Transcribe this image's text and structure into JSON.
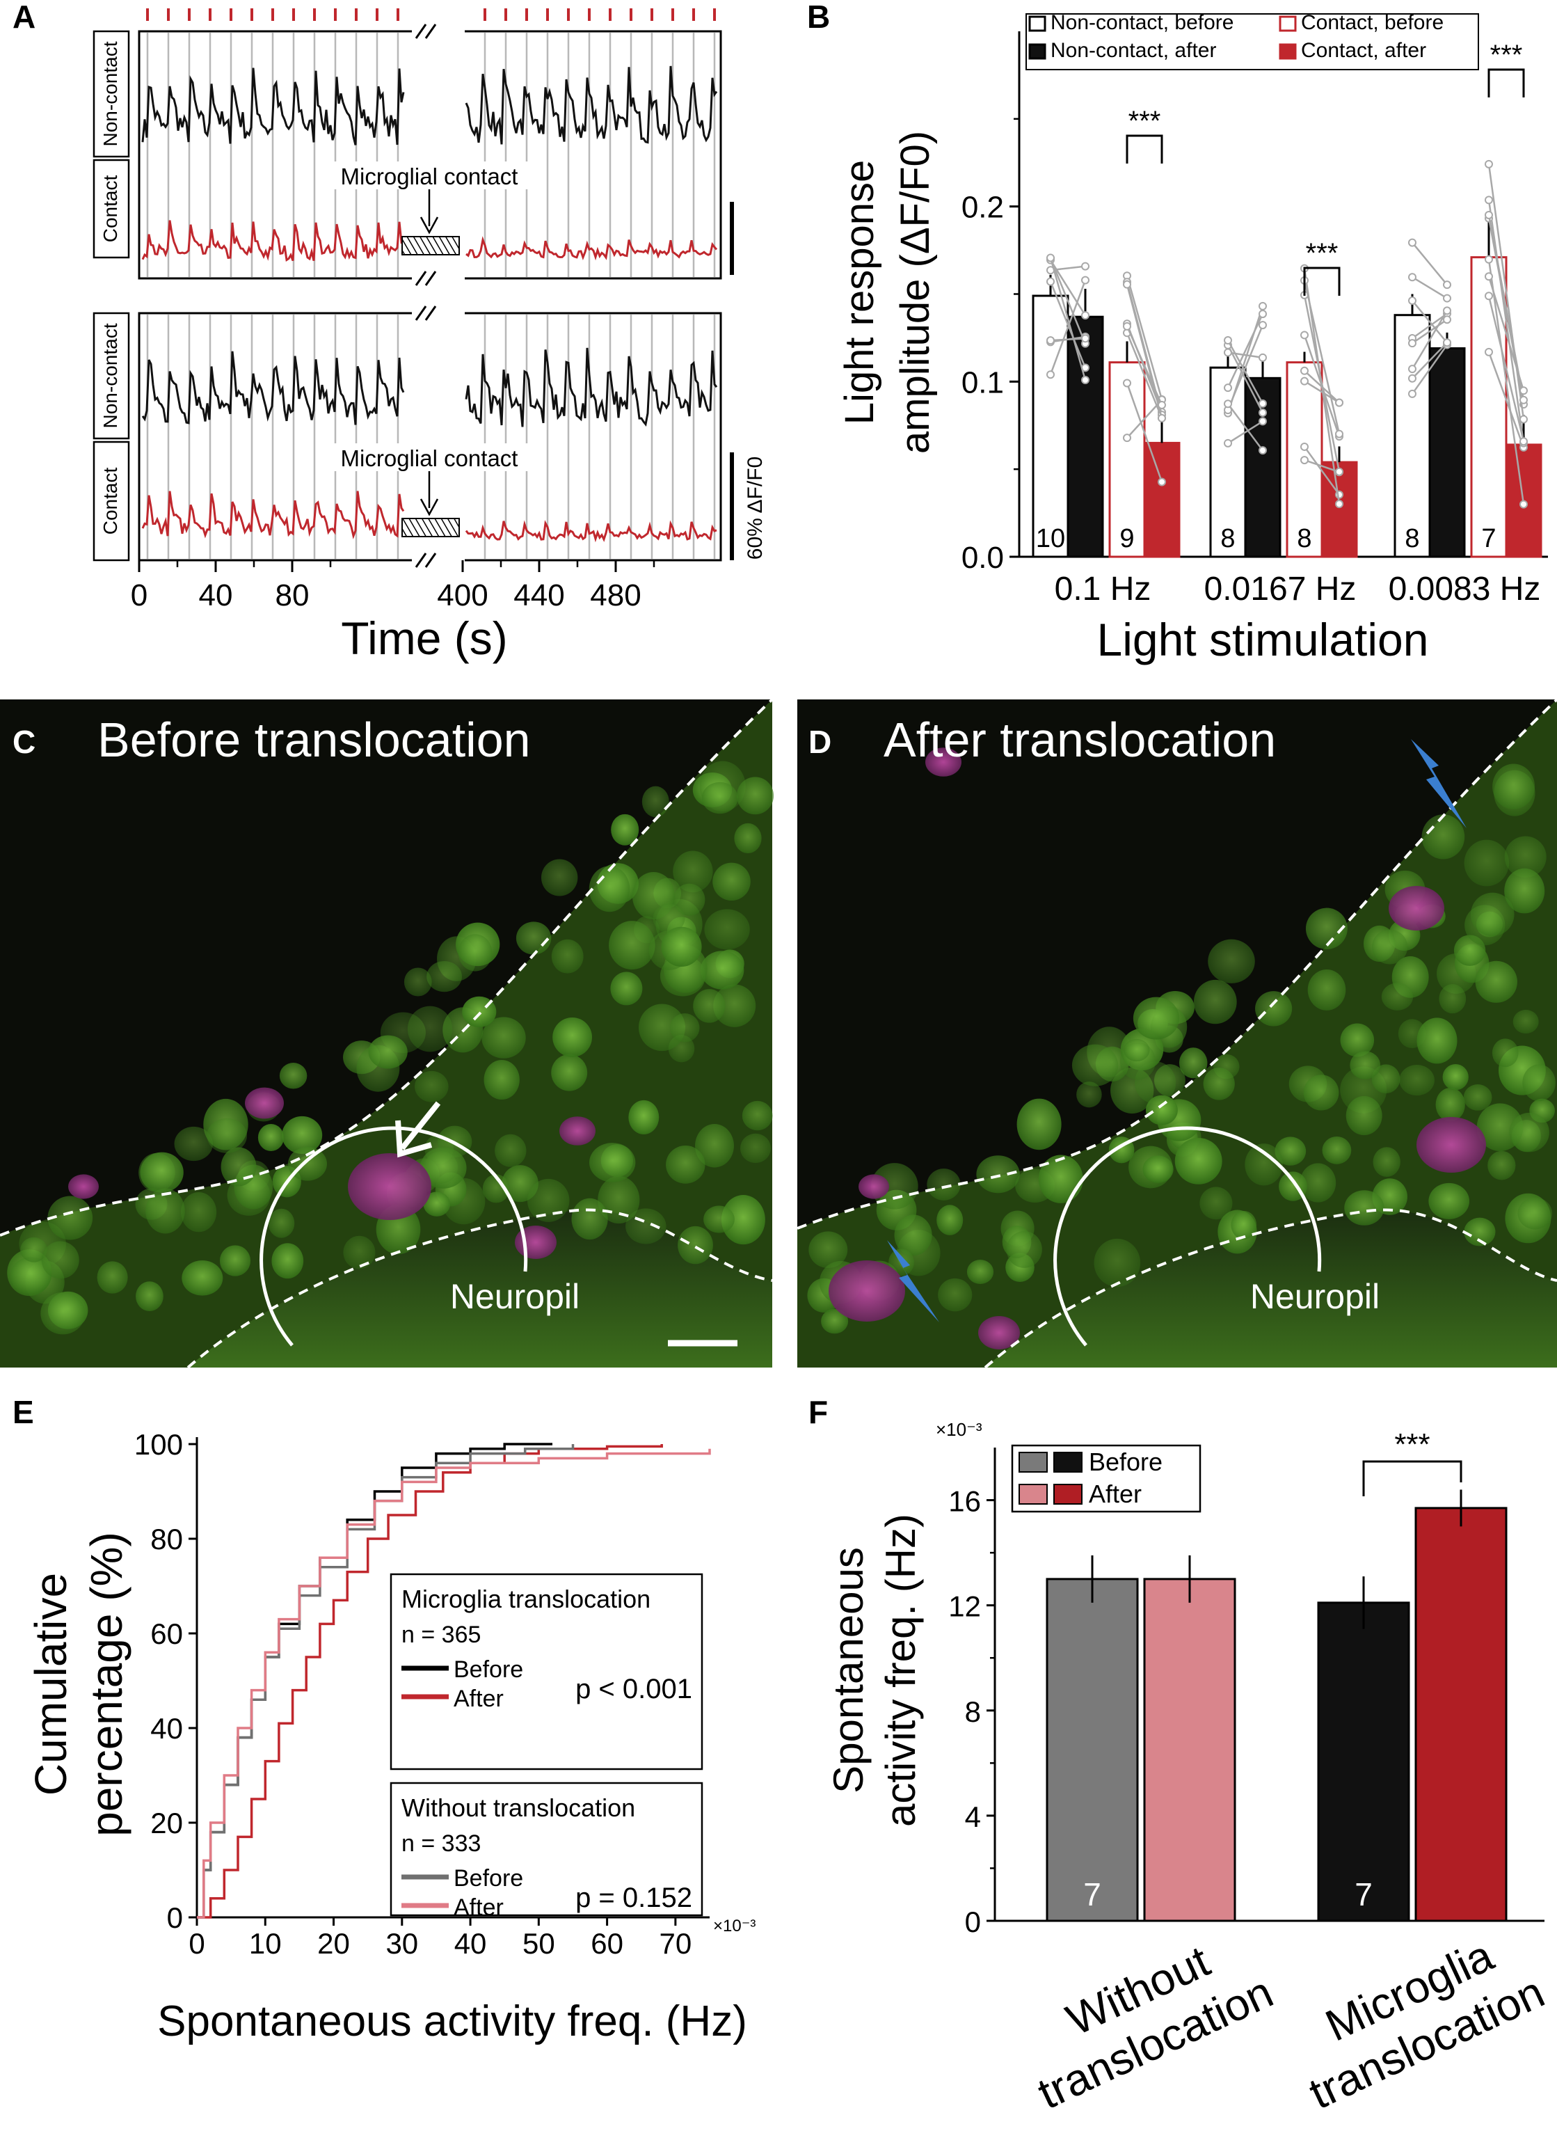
{
  "figure": {
    "panels": {
      "A": "A",
      "B": "B",
      "C": "C",
      "D": "D",
      "E": "E",
      "F": "F"
    }
  },
  "panel_a": {
    "row_labels": {
      "non_contact": "Non-contact",
      "contact": "Contact"
    },
    "annotation": "Microglial contact",
    "scale_label": "60% ΔF/F0",
    "xlabel": "Time (s)",
    "xticks": [
      "0",
      "40",
      "80",
      "400",
      "440",
      "480"
    ],
    "colors": {
      "non_contact": "#111111",
      "contact": "#c0272d",
      "stim": "#c0272d"
    }
  },
  "panel_c": {
    "title": "Before translocation",
    "region_label": "Neuropil"
  },
  "panel_d": {
    "title": "After translocation",
    "region_label": "Neuropil"
  },
  "chart_data": [
    {
      "id": "B",
      "type": "bar",
      "xlabel": "Light stimulation",
      "ylabel_line1": "Light response",
      "ylabel_line2": "amplitude (ΔF/F0)",
      "ylim": [
        0,
        0.3
      ],
      "yticks": [
        "0.0",
        "0.1",
        "0.2"
      ],
      "categories": [
        "0.1  Hz",
        "0.0167  Hz",
        "0.0083  Hz"
      ],
      "legend": [
        "Non-contact, before",
        "Non-contact, after",
        "Contact, before",
        "Contact, after"
      ],
      "series": [
        {
          "name": "Non-contact, before",
          "values": [
            0.149,
            0.108,
            0.138
          ],
          "err": [
            0.012,
            0.012,
            0.012
          ],
          "n": [
            "10",
            "8",
            "8"
          ],
          "color": "#ffffff"
        },
        {
          "name": "Non-contact, after",
          "values": [
            0.137,
            0.102,
            0.119
          ],
          "err": [
            0.016,
            0.014,
            0.009
          ],
          "n": [
            "",
            "",
            ""
          ],
          "color": "#111111"
        },
        {
          "name": "Contact, before",
          "values": [
            0.111,
            0.111,
            0.171
          ],
          "err": [
            0.012,
            0.006,
            0.021
          ],
          "n": [
            "9",
            "8",
            "7"
          ],
          "color": "#ffffff"
        },
        {
          "name": "Contact, after",
          "values": [
            0.065,
            0.054,
            0.064
          ],
          "err": [
            0.012,
            0.009,
            0.017
          ],
          "n": [
            "",
            "",
            ""
          ],
          "color": "#c0272d"
        }
      ],
      "significance": [
        "***",
        "***",
        "***"
      ]
    },
    {
      "id": "E",
      "type": "line",
      "xlabel": "Spontaneous activity freq. (Hz)",
      "x_multiplier": "×10⁻³",
      "ylabel_line1": "Cumulative",
      "ylabel_line2": "percentage (%)",
      "xlim": [
        0,
        75
      ],
      "ylim": [
        0,
        100
      ],
      "xticks": [
        "0",
        "10",
        "20",
        "30",
        "40",
        "50",
        "60",
        "70"
      ],
      "yticks": [
        "0",
        "20",
        "40",
        "60",
        "80",
        "100"
      ],
      "series": [
        {
          "name": "Before",
          "group": "Microglia translocation",
          "color": "#000000",
          "x": [
            0,
            1,
            2,
            4,
            6,
            8,
            10,
            12,
            15,
            18,
            22,
            26,
            30,
            35,
            40,
            45,
            52
          ],
          "y": [
            0,
            10,
            18,
            28,
            38,
            46,
            55,
            62,
            70,
            76,
            84,
            90,
            95,
            98,
            99,
            100,
            100
          ]
        },
        {
          "name": "After",
          "group": "Microglia translocation",
          "color": "#c0272d",
          "x": [
            0,
            2,
            4,
            6,
            8,
            10,
            12,
            14,
            16,
            18,
            20,
            22,
            25,
            28,
            32,
            36,
            40,
            45,
            50,
            60,
            68
          ],
          "y": [
            0,
            4,
            10,
            17,
            25,
            33,
            41,
            48,
            55,
            62,
            67,
            73,
            80,
            85,
            90,
            94,
            96,
            98,
            99,
            99.5,
            100
          ]
        },
        {
          "name": "Before",
          "group": "Without translocation",
          "color": "#707070",
          "x": [
            0,
            1,
            2,
            4,
            6,
            8,
            10,
            12,
            15,
            18,
            22,
            26,
            30,
            35,
            40,
            48,
            55
          ],
          "y": [
            0,
            10,
            18,
            28,
            38,
            46,
            55,
            61,
            68,
            74,
            82,
            88,
            93,
            96,
            98,
            99,
            100
          ]
        },
        {
          "name": "After",
          "group": "Without translocation",
          "color": "#e07b86",
          "x": [
            0,
            1,
            2,
            4,
            6,
            8,
            10,
            12,
            15,
            18,
            22,
            26,
            30,
            35,
            40,
            50,
            60,
            75
          ],
          "y": [
            0,
            12,
            20,
            30,
            40,
            48,
            56,
            63,
            70,
            76,
            83,
            88,
            92,
            95,
            96,
            97,
            98,
            99
          ]
        }
      ],
      "legend_boxes": [
        {
          "title": "Microglia translocation",
          "n": "n = 365",
          "before": "Before",
          "after": "After",
          "p": "p < 0.001"
        },
        {
          "title": "Without translocation",
          "n": "n = 333",
          "before": "Before",
          "after": "After",
          "p": "p = 0.152"
        }
      ]
    },
    {
      "id": "F",
      "type": "bar",
      "ylabel_line1": "Spontaneous",
      "ylabel_line2": "activity freq. (Hz)",
      "y_multiplier": "×10⁻³",
      "ylim": [
        0,
        18
      ],
      "yticks": [
        "0",
        "4",
        "8",
        "12",
        "16"
      ],
      "categories": [
        [
          "Without",
          "translocation"
        ],
        [
          "Microglia",
          "translocation"
        ]
      ],
      "legend": [
        "Before",
        "After"
      ],
      "series": [
        {
          "name": "Before",
          "values": [
            13.0,
            12.1
          ],
          "err": [
            0.9,
            1.0
          ],
          "colors": [
            "#7a7a7a",
            "#111111"
          ],
          "n": [
            "7",
            "7"
          ]
        },
        {
          "name": "After",
          "values": [
            13.0,
            15.7
          ],
          "err": [
            0.9,
            0.7
          ],
          "colors": [
            "#d9858c",
            "#b01e24"
          ],
          "n": [
            "",
            ""
          ]
        }
      ],
      "significance": "***"
    }
  ]
}
